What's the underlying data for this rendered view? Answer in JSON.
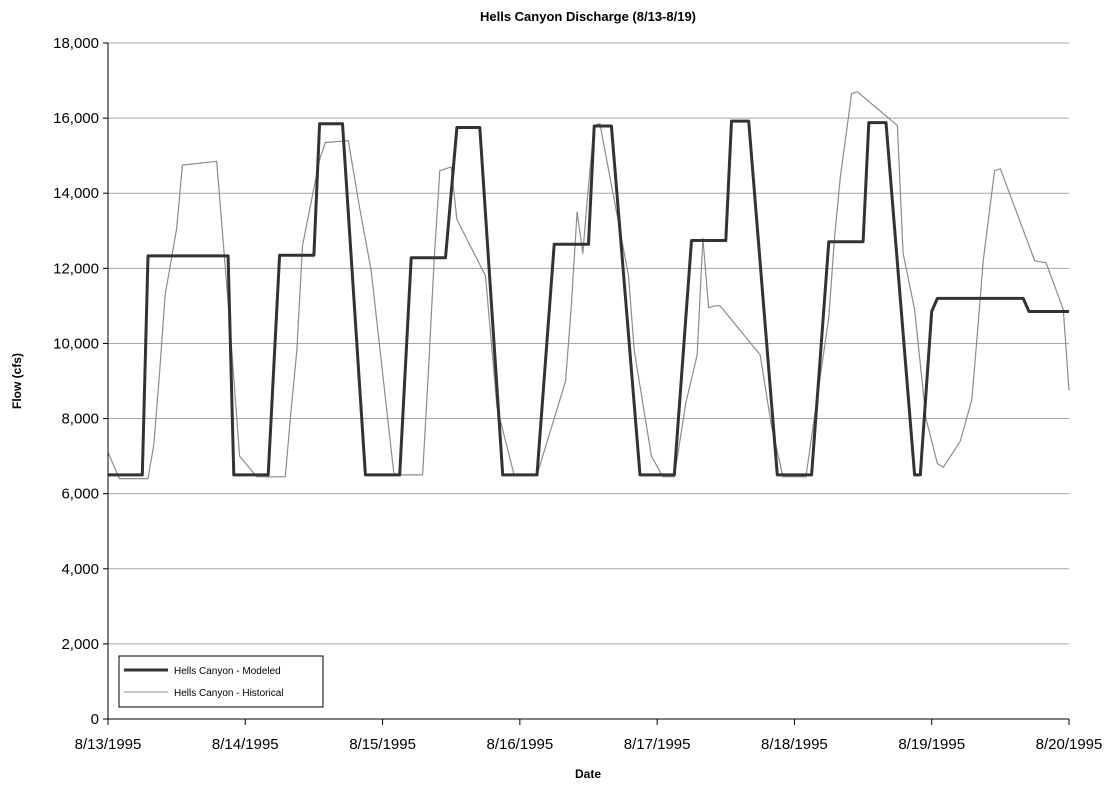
{
  "chart_data": {
    "type": "line",
    "title": "Hells Canyon Discharge (8/13-8/19)",
    "xlabel": "Date",
    "ylabel": "Flow (cfs)",
    "ylim": [
      0,
      18000
    ],
    "y_ticks": [
      0,
      2000,
      4000,
      6000,
      8000,
      10000,
      12000,
      14000,
      16000,
      18000
    ],
    "y_tick_labels": [
      "0",
      "2,000",
      "4,000",
      "6,000",
      "8,000",
      "10,000",
      "12,000",
      "14,000",
      "16,000",
      "18,000"
    ],
    "x_ticks": [
      "8/13/1995",
      "8/14/1995",
      "8/15/1995",
      "8/16/1995",
      "8/17/1995",
      "8/18/1995",
      "8/19/1995",
      "8/20/1995"
    ],
    "xlim": [
      "8/13/1995 00:00",
      "8/20/1995 00:00"
    ],
    "grid": "horizontal",
    "legend_position": "bottom-left",
    "series": [
      {
        "name": "Hells Canyon - Modeled",
        "color": "#333333",
        "x": [
          "8/13/1995 00:00",
          "8/13/1995 06:00",
          "8/13/1995 07:00",
          "8/13/1995 09:00",
          "8/13/1995 21:00",
          "8/13/1995 22:00",
          "8/14/1995 00:00",
          "8/14/1995 04:00",
          "8/14/1995 06:00",
          "8/14/1995 12:00",
          "8/14/1995 13:00",
          "8/14/1995 17:00",
          "8/14/1995 21:00",
          "8/15/1995 00:00",
          "8/15/1995 03:00",
          "8/15/1995 05:00",
          "8/15/1995 11:00",
          "8/15/1995 13:00",
          "8/15/1995 17:00",
          "8/15/1995 21:00",
          "8/16/1995 00:00",
          "8/16/1995 03:00",
          "8/16/1995 06:00",
          "8/16/1995 12:00",
          "8/16/1995 13:00",
          "8/16/1995 16:00",
          "8/16/1995 21:00",
          "8/17/1995 00:00",
          "8/17/1995 03:00",
          "8/17/1995 06:00",
          "8/17/1995 12:00",
          "8/17/1995 13:00",
          "8/17/1995 16:00",
          "8/17/1995 21:00",
          "8/18/1995 00:00",
          "8/18/1995 03:00",
          "8/18/1995 06:00",
          "8/18/1995 12:00",
          "8/18/1995 13:00",
          "8/18/1995 16:00",
          "8/18/1995 21:00",
          "8/18/1995 22:00",
          "8/19/1995 00:00",
          "8/19/1995 01:00",
          "8/19/1995 03:00",
          "8/19/1995 16:00",
          "8/19/1995 17:00",
          "8/20/1995 00:00"
        ],
        "y": [
          6500,
          6500,
          12330,
          12330,
          12330,
          6500,
          6500,
          6500,
          12350,
          12350,
          15850,
          15850,
          6500,
          6500,
          6500,
          12280,
          12280,
          15750,
          15750,
          6500,
          6500,
          6500,
          12640,
          12640,
          15790,
          15790,
          6500,
          6500,
          6500,
          12740,
          12740,
          15920,
          15920,
          6500,
          6500,
          6500,
          12710,
          12710,
          15880,
          15880,
          6500,
          6500,
          10850,
          11200,
          11200,
          11200,
          10850,
          10850
        ]
      },
      {
        "name": "Hells Canyon - Historical",
        "color": "#8c8c8c",
        "x": [
          "8/13/1995 00:00",
          "8/13/1995 02:00",
          "8/13/1995 07:00",
          "8/13/1995 08:00",
          "8/13/1995 09:00",
          "8/13/1995 10:00",
          "8/13/1995 12:00",
          "8/13/1995 13:00",
          "8/13/1995 19:00",
          "8/13/1995 21:00",
          "8/13/1995 23:00",
          "8/14/1995 02:00",
          "8/14/1995 07:00",
          "8/14/1995 08:00",
          "8/14/1995 09:00",
          "8/14/1995 10:00",
          "8/14/1995 13:00",
          "8/14/1995 14:00",
          "8/14/1995 18:00",
          "8/14/1995 20:00",
          "8/14/1995 22:00",
          "8/15/1995 02:00",
          "8/15/1995 07:00",
          "8/15/1995 08:00",
          "8/15/1995 09:00",
          "8/15/1995 10:00",
          "8/15/1995 12:00",
          "8/15/1995 13:00",
          "8/15/1995 18:00",
          "8/15/1995 20:00",
          "8/15/1995 23:00",
          "8/16/1995 03:00",
          "8/16/1995 07:00",
          "8/16/1995 08:00",
          "8/16/1995 09:00",
          "8/16/1995 10:00",
          "8/16/1995 11:00",
          "8/16/1995 12:00",
          "8/16/1995 13:00",
          "8/16/1995 14:00",
          "8/16/1995 19:00",
          "8/16/1995 20:00",
          "8/16/1995 23:00",
          "8/17/1995 01:00",
          "8/17/1995 03:00",
          "8/17/1995 05:00",
          "8/17/1995 07:00",
          "8/17/1995 08:00",
          "8/17/1995 09:00",
          "8/17/1995 10:00",
          "8/17/1995 11:00",
          "8/17/1995 18:00",
          "8/17/1995 20:00",
          "8/17/1995 22:00",
          "8/18/1995 02:00",
          "8/18/1995 06:00",
          "8/18/1995 07:00",
          "8/18/1995 08:00",
          "8/18/1995 10:00",
          "8/18/1995 11:00",
          "8/18/1995 18:00",
          "8/18/1995 19:00",
          "8/18/1995 21:00",
          "8/18/1995 23:00",
          "8/19/1995 01:00",
          "8/19/1995 02:00",
          "8/19/1995 05:00",
          "8/19/1995 07:00",
          "8/19/1995 08:00",
          "8/19/1995 09:00",
          "8/19/1995 11:00",
          "8/19/1995 12:00",
          "8/19/1995 18:00",
          "8/19/1995 20:00",
          "8/19/1995 23:00",
          "8/20/1995 00:00"
        ],
        "y": [
          7100,
          6400,
          6400,
          7300,
          9200,
          11300,
          13050,
          14750,
          14850,
          11100,
          7000,
          6450,
          6450,
          8200,
          9800,
          12600,
          14900,
          15350,
          15400,
          13600,
          11950,
          6500,
          6500,
          9200,
          12200,
          14600,
          14700,
          13300,
          11800,
          8300,
          6500,
          6500,
          8500,
          9000,
          11000,
          13500,
          12400,
          14200,
          15800,
          15850,
          11800,
          9800,
          7000,
          6450,
          6450,
          8400,
          9700,
          12800,
          10950,
          11000,
          11000,
          9700,
          7800,
          6450,
          6450,
          10700,
          12800,
          14400,
          16650,
          16700,
          15800,
          12400,
          10900,
          8000,
          6800,
          6700,
          7400,
          8500,
          10300,
          12200,
          14600,
          14650,
          12200,
          12150,
          10900,
          8750
        ]
      }
    ]
  }
}
